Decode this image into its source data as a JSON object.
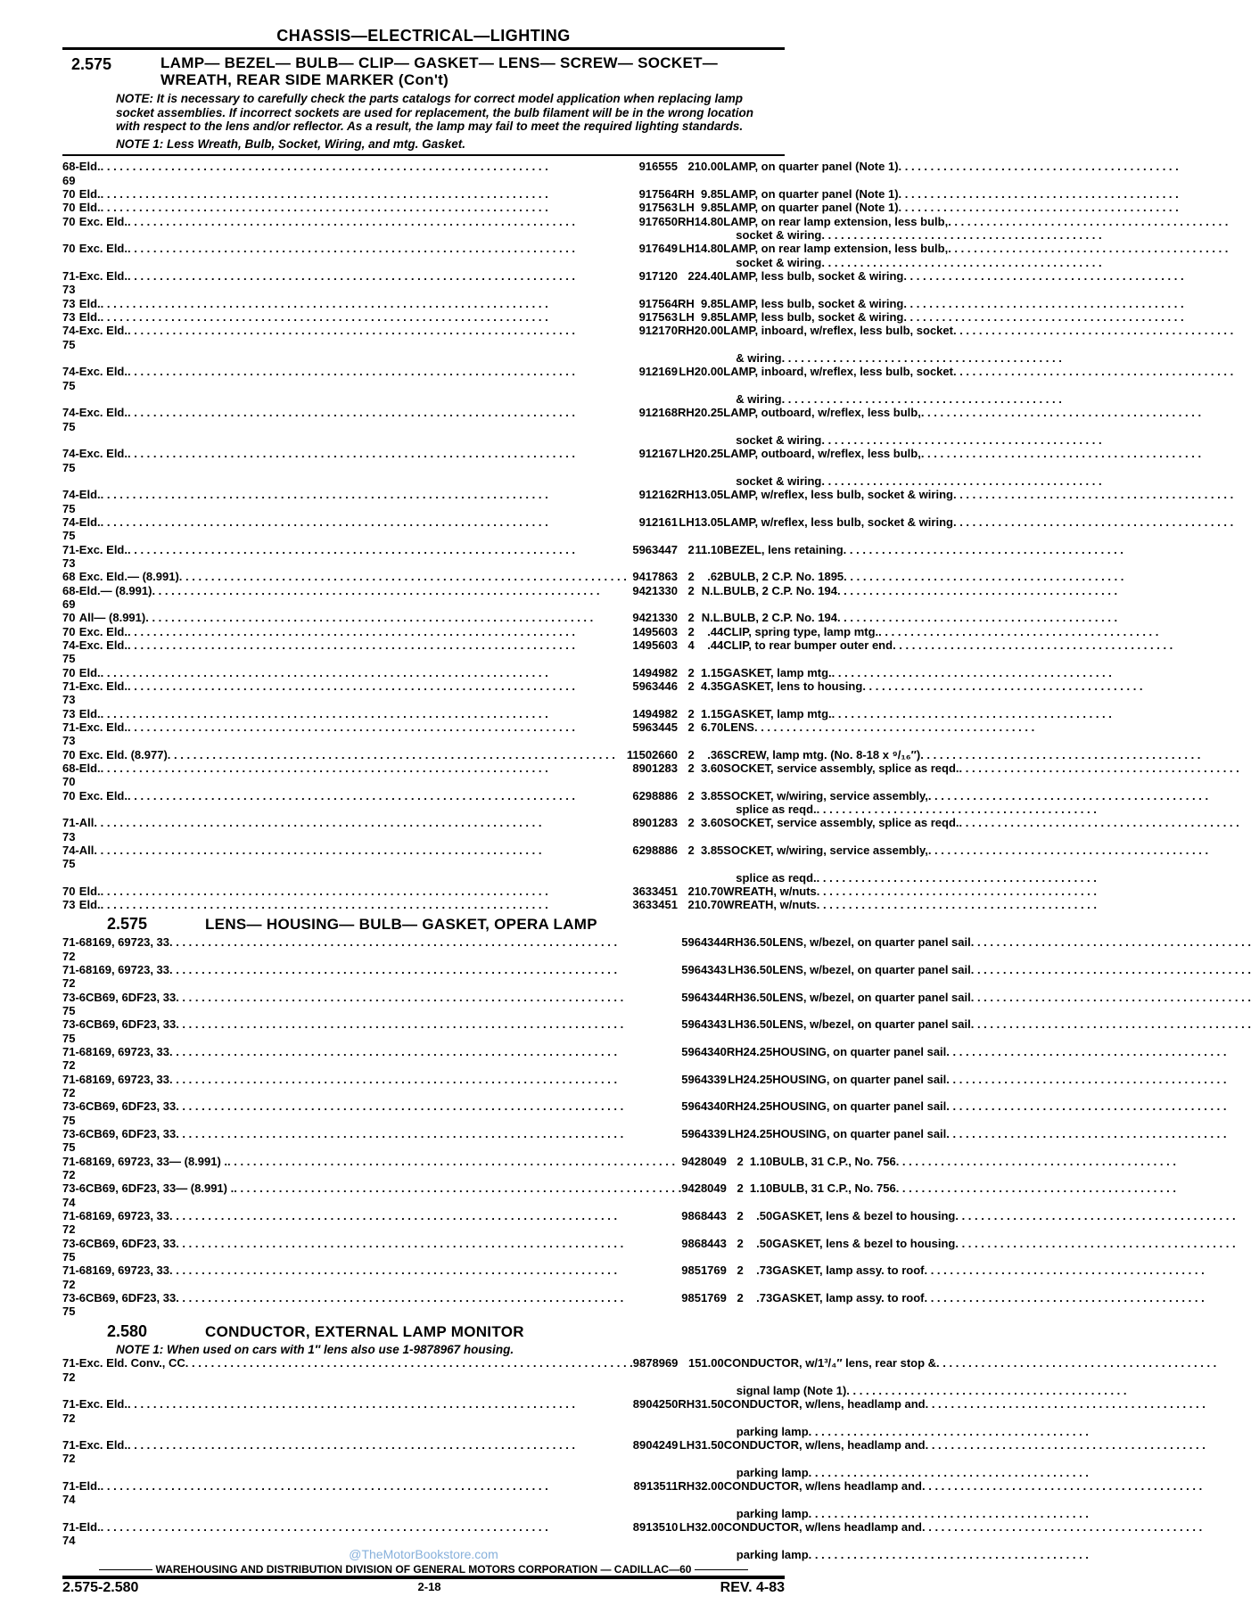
{
  "header": "CHASSIS—ELECTRICAL—LIGHTING",
  "sec1": {
    "num": "2.575",
    "title": "LAMP— BEZEL— BULB— CLIP— GASKET— LENS— SCREW— SOCKET— WREATH, REAR SIDE MARKER    (Con't)",
    "note": "NOTE: It is necessary to carefully check the parts catalogs for correct model application when replacing lamp socket assemblies. If incorrect sockets are used for replacement, the bulb filament will be in the wrong location with respect to the lens and/or reflector. As a result, the lamp may fail to meet the required lighting standards.",
    "note1": "NOTE 1: Less Wreath, Bulb, Socket, Wiring, and mtg. Gasket."
  },
  "rows1": [
    {
      "yr": "68-69",
      "app": "Eld.",
      "part": "916555",
      "qty": "2",
      "price": "10.00",
      "desc": "<b>LAMP,</b> on quarter panel (Note 1)"
    },
    {
      "yr": "70",
      "app": "Eld.",
      "part": "917564",
      "qty": "RH",
      "price": "9.85",
      "desc": "<b>LAMP,</b> on quarter panel (Note 1)"
    },
    {
      "yr": "70",
      "app": "Eld.",
      "part": "917563",
      "qty": "LH",
      "price": "9.85",
      "desc": "<b>LAMP,</b> on quarter panel (Note 1)"
    },
    {
      "yr": "70",
      "app": "Exc. Eld.",
      "part": "917650",
      "qty": "RH",
      "price": "14.80",
      "desc": "<b>LAMP,</b> on rear lamp extension, less bulb,",
      "cont": "socket & wiring"
    },
    {
      "yr": "70",
      "app": "Exc. Eld.",
      "part": "917649",
      "qty": "LH",
      "price": "14.80",
      "desc": "<b>LAMP,</b> on rear lamp extension, less bulb,",
      "cont": "socket & wiring"
    },
    {
      "yr": "71-73",
      "app": "Exc. Eld.",
      "part": "917120",
      "qty": "2",
      "price": "24.40",
      "desc": "<b>LAMP,</b> less bulb, socket & wiring"
    },
    {
      "yr": "73",
      "app": "Eld.",
      "part": "917564",
      "qty": "RH",
      "price": "9.85",
      "desc": "<b>LAMP,</b> less bulb, socket & wiring"
    },
    {
      "yr": "73",
      "app": "Eld.",
      "part": "917563",
      "qty": "LH",
      "price": "9.85",
      "desc": "<b>LAMP,</b> less bulb, socket & wiring"
    },
    {
      "yr": "74-75",
      "app": "Exc. Eld.",
      "part": "912170",
      "qty": "RH",
      "price": "20.00",
      "desc": "<b>LAMP,</b> inboard, w/reflex, less bulb, socket",
      "cont": "& wiring"
    },
    {
      "yr": "74-75",
      "app": "Exc. Eld.",
      "part": "912169",
      "qty": "LH",
      "price": "20.00",
      "desc": "<b>LAMP,</b> inboard, w/reflex, less bulb, socket",
      "cont": "& wiring"
    },
    {
      "yr": "74-75",
      "app": "Exc. Eld.",
      "part": "912168",
      "qty": "RH",
      "price": "20.25",
      "desc": "<b>LAMP,</b> outboard, w/reflex, less bulb,",
      "cont": "socket & wiring"
    },
    {
      "yr": "74-75",
      "app": "Exc. Eld.",
      "part": "912167",
      "qty": "LH",
      "price": "20.25",
      "desc": "<b>LAMP,</b> outboard, w/reflex, less bulb,",
      "cont": "socket & wiring"
    },
    {
      "yr": "74-75",
      "app": "Eld.",
      "part": "912162",
      "qty": "RH",
      "price": "13.05",
      "desc": "<b>LAMP,</b> w/reflex, less bulb, socket & wiring"
    },
    {
      "yr": "74-75",
      "app": "Eld.",
      "part": "912161",
      "qty": "LH",
      "price": "13.05",
      "desc": "<b>LAMP,</b> w/reflex, less bulb, socket & wiring"
    },
    {
      "yr": "71-73",
      "app": "Exc. Eld.",
      "part": "5963447",
      "qty": "2",
      "price": "11.10",
      "desc": "<b>BEZEL,</b> lens retaining"
    },
    {
      "yr": "68",
      "app": "Exc. Eld.— (8.991)",
      "part": "9417863",
      "qty": "2",
      "price": ".62",
      "desc": "<b>BULB,</b> 2 C.P. No. 1895"
    },
    {
      "yr": "68-69",
      "app": "Eld.— (8.991)",
      "part": "9421330",
      "qty": "2",
      "price": "N.L.",
      "desc": "<b>BULB,</b> 2 C.P. No. 194"
    },
    {
      "yr": "70",
      "app": "All— (8.991)",
      "part": "9421330",
      "qty": "2",
      "price": "N.L.",
      "desc": "<b>BULB,</b> 2 C.P. No. 194"
    },
    {
      "yr": "70",
      "app": "Exc. Eld.",
      "part": "1495603",
      "qty": "2",
      "price": ".44",
      "desc": "<b>CLIP,</b> spring type, lamp mtg."
    },
    {
      "yr": "74-75",
      "app": "Exc. Eld.",
      "part": "1495603",
      "qty": "4",
      "price": ".44",
      "desc": "<b>CLIP,</b> to rear bumper outer end"
    },
    {
      "yr": "70",
      "app": "Eld.",
      "part": "1494982",
      "qty": "2",
      "price": "1.15",
      "desc": "<b>GASKET,</b> lamp mtg."
    },
    {
      "yr": "71-73",
      "app": "Exc. Eld.",
      "part": "5963446",
      "qty": "2",
      "price": "4.35",
      "desc": "<b>GASKET,</b> lens to housing"
    },
    {
      "yr": "73",
      "app": "Eld.",
      "part": "1494982",
      "qty": "2",
      "price": "1.15",
      "desc": "<b>GASKET,</b> lamp mtg."
    },
    {
      "yr": "71-73",
      "app": "Exc. Eld.",
      "part": "5963445",
      "qty": "2",
      "price": "6.70",
      "desc": "<b>LENS</b>"
    },
    {
      "yr": "70",
      "app": "Exc. Eld. (8.977)",
      "part": "11502660",
      "qty": "2",
      "price": ".36",
      "desc": "<b>SCREW,</b> lamp mtg. (No. 8-18 x ⁹/₁₆″)"
    },
    {
      "yr": "68-70",
      "app": "Eld.",
      "part": "8901283",
      "qty": "2",
      "price": "3.60",
      "desc": "<b>SOCKET,</b> service assembly, splice as reqd."
    },
    {
      "yr": "70",
      "app": "Exc. Eld.",
      "part": "6298886",
      "qty": "2",
      "price": "3.85",
      "desc": "<b>SOCKET,</b> w/wiring, service assembly,",
      "cont": "splice as reqd."
    },
    {
      "yr": "71-73",
      "app": "All",
      "part": "8901283",
      "qty": "2",
      "price": "3.60",
      "desc": "<b>SOCKET,</b> service assembly, splice as reqd."
    },
    {
      "yr": "74-75",
      "app": "All",
      "part": "6298886",
      "qty": "2",
      "price": "3.85",
      "desc": "<b>SOCKET,</b> w/wiring, service assembly,",
      "cont": "splice as reqd."
    },
    {
      "yr": "70",
      "app": "Eld.",
      "part": "3633451",
      "qty": "2",
      "price": "10.70",
      "desc": "<b>WREATH,</b> w/nuts"
    },
    {
      "yr": "73",
      "app": "Eld.",
      "part": "3633451",
      "qty": "2",
      "price": "10.70",
      "desc": "<b>WREATH,</b> w/nuts"
    }
  ],
  "sec2": {
    "num": "2.575",
    "title": "LENS— HOUSING— BULB— GASKET, OPERA LAMP"
  },
  "rows2": [
    {
      "yr": "71-72",
      "app": "68169, 69723, 33",
      "part": "5964344",
      "qty": "RH",
      "price": "36.50",
      "desc": "<b>LENS,</b> w/bezel, on quarter panel sail"
    },
    {
      "yr": "71-72",
      "app": "68169, 69723, 33",
      "part": "5964343",
      "qty": "LH",
      "price": "36.50",
      "desc": "<b>LENS,</b> w/bezel, on quarter panel sail"
    },
    {
      "yr": "73-75",
      "app": "6CB69, 6DF23, 33",
      "part": "5964344",
      "qty": "RH",
      "price": "36.50",
      "desc": "<b>LENS,</b> w/bezel, on quarter panel sail"
    },
    {
      "yr": "73-75",
      "app": "6CB69, 6DF23, 33",
      "part": "5964343",
      "qty": "LH",
      "price": "36.50",
      "desc": "<b>LENS,</b> w/bezel, on quarter panel sail"
    },
    {
      "yr": "71-72",
      "app": "68169, 69723, 33",
      "part": "5964340",
      "qty": "RH",
      "price": "24.25",
      "desc": "<b>HOUSING,</b> on quarter panel sail"
    },
    {
      "yr": "71-72",
      "app": "68169, 69723, 33",
      "part": "5964339",
      "qty": "LH",
      "price": "24.25",
      "desc": "<b>HOUSING,</b> on quarter panel sail"
    },
    {
      "yr": "73-75",
      "app": "6CB69, 6DF23, 33",
      "part": "5964340",
      "qty": "RH",
      "price": "24.25",
      "desc": "<b>HOUSING,</b> on quarter panel sail"
    },
    {
      "yr": "73-75",
      "app": "6CB69, 6DF23, 33",
      "part": "5964339",
      "qty": "LH",
      "price": "24.25",
      "desc": "<b>HOUSING,</b> on quarter panel sail"
    },
    {
      "yr": "71-72",
      "app": "68169, 69723, 33— (8.991)  .",
      "part": "9428049",
      "qty": "2",
      "price": "1.10",
      "desc": "<b>BULB,</b> 31 C.P., No. 756"
    },
    {
      "yr": "73-74",
      "app": "6CB69, 6DF23, 33— (8.991) .",
      "part": "9428049",
      "qty": "2",
      "price": "1.10",
      "desc": "<b>BULB,</b> 31 C.P., No. 756"
    },
    {
      "yr": "71-72",
      "app": "68169, 69723, 33",
      "part": "9868443",
      "qty": "2",
      "price": ".50",
      "desc": "<b>GASKET,</b> lens & bezel to housing"
    },
    {
      "yr": "73-75",
      "app": "6CB69, 6DF23, 33",
      "part": "9868443",
      "qty": "2",
      "price": ".50",
      "desc": "<b>GASKET,</b> lens & bezel to housing"
    },
    {
      "yr": "71-72",
      "app": "68169, 69723, 33",
      "part": "9851769",
      "qty": "2",
      "price": ".73",
      "desc": "<b>GASKET,</b> lamp assy. to roof"
    },
    {
      "yr": "73-75",
      "app": "6CB69, 6DF23, 33",
      "part": "9851769",
      "qty": "2",
      "price": ".73",
      "desc": "<b>GASKET,</b> lamp assy. to roof"
    }
  ],
  "sec3": {
    "num": "2.580",
    "title": "CONDUCTOR, EXTERNAL LAMP MONITOR",
    "note": "NOTE 1: When used on cars with 1″ lens also use 1-9878967 housing."
  },
  "rows3": [
    {
      "yr": "71-72",
      "app": "Exc. Eld. Conv., CC",
      "part": "9878969",
      "qty": "1",
      "price": "51.00",
      "desc": "<b>CONDUCTOR,</b> w/1³/₄″ lens, rear stop &",
      "cont": "signal lamp (Note 1)"
    },
    {
      "yr": "71-72",
      "app": "Exc. Eld.",
      "part": "8904250",
      "qty": "RH",
      "price": "31.50",
      "desc": "<b>CONDUCTOR,</b> w/lens, headlamp and",
      "cont": "parking lamp"
    },
    {
      "yr": "71-72",
      "app": "Exc. Eld.",
      "part": "8904249",
      "qty": "LH",
      "price": "31.50",
      "desc": "<b>CONDUCTOR,</b> w/lens, headlamp and",
      "cont": "parking lamp"
    },
    {
      "yr": "71-74",
      "app": "Eld.",
      "part": "8913511",
      "qty": "RH",
      "price": "32.00",
      "desc": "<b>CONDUCTOR,</b> w/lens headlamp and",
      "cont": "parking lamp"
    },
    {
      "yr": "71-74",
      "app": "Eld.",
      "part": "8913510",
      "qty": "LH",
      "price": "32.00",
      "desc": "<b>CONDUCTOR,</b> w/lens headlamp and",
      "cont": "parking lamp"
    }
  ],
  "footer": {
    "line1": "WAREHOUSING AND DISTRIBUTION DIVISION OF GENERAL MOTORS CORPORATION — CADILLAC—60",
    "left": "2.575-2.580",
    "center": "2-18",
    "right": "REV. 4-83",
    "watermark": "@TheMotorBookstore.com"
  }
}
